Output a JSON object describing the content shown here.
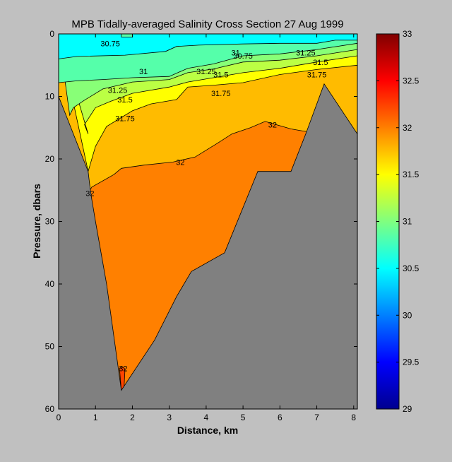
{
  "chart_data": {
    "type": "contour",
    "title": "MPB  Tidally-averaged Salinity Cross Section  27 Aug 1999",
    "xlabel": "Distance, km",
    "ylabel": "Pressure, dbars",
    "xlim": [
      0,
      8.1
    ],
    "ylim": [
      60,
      0
    ],
    "y_reversed": true,
    "x_ticks": [
      "0",
      "1",
      "2",
      "3",
      "4",
      "5",
      "6",
      "7",
      "8"
    ],
    "y_ticks": [
      "0",
      "10",
      "20",
      "30",
      "40",
      "50",
      "60"
    ],
    "colorbar": {
      "range": [
        29,
        33
      ],
      "ticks": [
        "29",
        "29.5",
        "30",
        "30.5",
        "31",
        "31.5",
        "32",
        "32.5",
        "33"
      ],
      "colormap": "jet"
    },
    "contour_levels": [
      30.75,
      31,
      31.25,
      31.5,
      31.75,
      32
    ],
    "contour_labels": [
      {
        "text": "30.75",
        "x": 5.0,
        "y": 3.5
      },
      {
        "text": "30.75",
        "x": 1.4,
        "y": 1.5
      },
      {
        "text": "31",
        "x": 2.3,
        "y": 6.0
      },
      {
        "text": "31",
        "x": 4.8,
        "y": 3.0
      },
      {
        "text": "31.25",
        "x": 1.6,
        "y": 9.0
      },
      {
        "text": "31.25",
        "x": 4.0,
        "y": 6.0
      },
      {
        "text": "31.25",
        "x": 6.7,
        "y": 3.0
      },
      {
        "text": "31.5",
        "x": 1.8,
        "y": 10.5
      },
      {
        "text": "31.5",
        "x": 4.4,
        "y": 6.5
      },
      {
        "text": "31.5",
        "x": 7.1,
        "y": 4.5
      },
      {
        "text": "31.75",
        "x": 1.8,
        "y": 13.5
      },
      {
        "text": "31.75",
        "x": 4.4,
        "y": 9.5
      },
      {
        "text": "31.75",
        "x": 7.0,
        "y": 6.5
      },
      {
        "text": "32",
        "x": 3.3,
        "y": 20.5
      },
      {
        "text": "32",
        "x": 5.8,
        "y": 14.5
      },
      {
        "text": "32",
        "x": 0.85,
        "y": 25.5
      },
      {
        "text": "32",
        "x": 1.75,
        "y": 53.5
      }
    ],
    "bands": [
      {
        "range": "<30.75",
        "color": "#00ffff",
        "boundary": [
          [
            0,
            0
          ],
          [
            1.7,
            0
          ],
          [
            1.7,
            0.5
          ],
          [
            2,
            0.5
          ],
          [
            2,
            0
          ],
          [
            8.1,
            0
          ],
          [
            8.1,
            1
          ],
          [
            7.5,
            1
          ],
          [
            7,
            1.5
          ],
          [
            6,
            1.5
          ],
          [
            5,
            1.6
          ],
          [
            3.8,
            1.8
          ],
          [
            3.2,
            2
          ],
          [
            2.9,
            2.8
          ],
          [
            1.8,
            3.4
          ],
          [
            0.5,
            3.6
          ],
          [
            0,
            4
          ]
        ]
      },
      {
        "range": "30.75-31",
        "color": "#55ffaa",
        "boundary": [
          [
            0,
            0
          ],
          [
            8.1,
            0
          ],
          [
            8.1,
            1.5
          ],
          [
            7,
            2.5
          ],
          [
            6,
            3.2
          ],
          [
            5,
            3.5
          ],
          [
            4.2,
            4.8
          ],
          [
            3.5,
            5.5
          ],
          [
            3,
            6.8
          ],
          [
            2,
            7
          ],
          [
            1.2,
            7.3
          ],
          [
            0.5,
            7.5
          ],
          [
            0,
            7.8
          ]
        ]
      },
      {
        "range": "31-31.25",
        "color": "#88ff77",
        "boundary": [
          [
            0,
            0
          ],
          [
            8.1,
            0
          ],
          [
            8.1,
            2.5
          ],
          [
            7,
            3.5
          ],
          [
            6,
            4.2
          ],
          [
            5,
            4.5
          ],
          [
            4.2,
            5.6
          ],
          [
            3.5,
            6.2
          ],
          [
            3,
            7.3
          ],
          [
            2,
            7.7
          ],
          [
            1.2,
            8.8
          ],
          [
            0.7,
            10.6
          ],
          [
            0.4,
            11.8
          ],
          [
            0.3,
            13
          ]
        ]
      },
      {
        "range": "31.25-31.5",
        "color": "#bbff44",
        "boundary": [
          [
            0,
            0
          ],
          [
            8.1,
            0
          ],
          [
            8.1,
            3.5
          ],
          [
            7,
            4.5
          ],
          [
            6,
            5.5
          ],
          [
            5,
            6.2
          ],
          [
            4.2,
            7
          ],
          [
            3.5,
            7.7
          ],
          [
            3,
            8.5
          ],
          [
            2,
            9.5
          ],
          [
            1.4,
            10.8
          ],
          [
            1,
            11.8
          ],
          [
            0.7,
            14.5
          ],
          [
            0.8,
            16
          ]
        ]
      },
      {
        "range": "31.5-31.75",
        "color": "#ffff00",
        "boundary": [
          [
            0,
            0
          ],
          [
            8.1,
            0
          ],
          [
            8.1,
            5
          ],
          [
            7,
            5.7
          ],
          [
            6,
            6.5
          ],
          [
            5,
            7.8
          ],
          [
            4.2,
            8.2
          ],
          [
            3.5,
            8.5
          ],
          [
            3.2,
            10.5
          ],
          [
            2.5,
            11.2
          ],
          [
            2,
            12.3
          ],
          [
            1.3,
            14.8
          ],
          [
            1,
            18
          ],
          [
            0.8,
            22
          ]
        ]
      }
    ],
    "base_bands": [
      {
        "range": "31.75-32",
        "color": "#ffbb00"
      },
      {
        "range": "32-32.25",
        "color": "#ff8000"
      },
      {
        "range": ">32.25",
        "color": "#ff4400"
      }
    ],
    "isohaline_32": [
      [
        0.85,
        25
      ],
      [
        0.9,
        24.5
      ],
      [
        1.5,
        22.5
      ],
      [
        1.7,
        21.5
      ],
      [
        2.3,
        21
      ],
      [
        3.1,
        20.5
      ],
      [
        3.7,
        19.7
      ],
      [
        4.3,
        17.5
      ],
      [
        4.7,
        16
      ],
      [
        5.2,
        15
      ],
      [
        5.6,
        14
      ],
      [
        6.3,
        15.2
      ],
      [
        6.7,
        15.6
      ]
    ],
    "bathymetry": [
      [
        0,
        10
      ],
      [
        0.8,
        22
      ],
      [
        0.85,
        24.5
      ],
      [
        0.9,
        26.5
      ],
      [
        1.0,
        30
      ],
      [
        1.3,
        40
      ],
      [
        1.7,
        57
      ],
      [
        2.6,
        49
      ],
      [
        3.2,
        42
      ],
      [
        3.6,
        38
      ],
      [
        4.5,
        35
      ],
      [
        5.4,
        22
      ],
      [
        6.3,
        22
      ],
      [
        6.7,
        16
      ],
      [
        7.2,
        8
      ],
      [
        8.1,
        16
      ]
    ],
    "bathymetry_color": "#808080"
  }
}
